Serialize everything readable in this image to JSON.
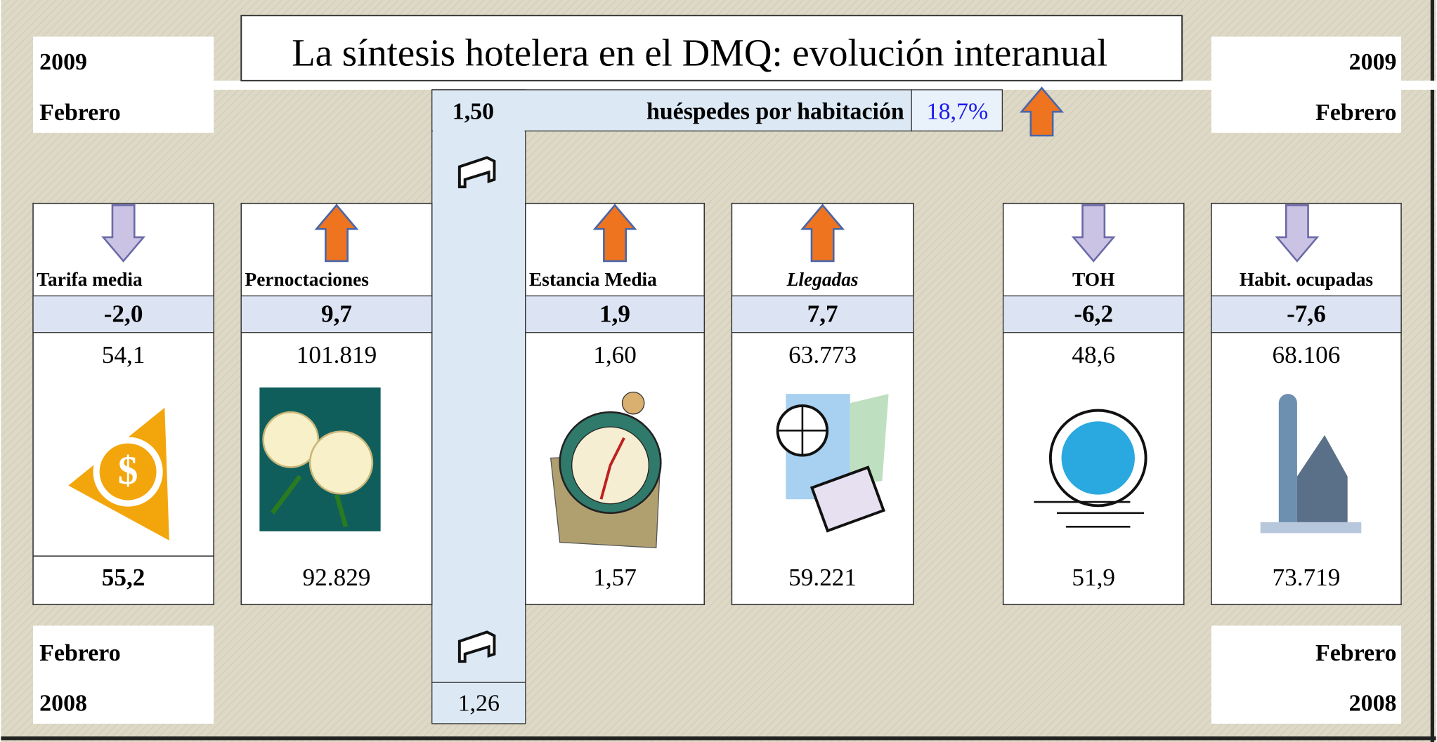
{
  "title": "La síntesis  hotelera en el DMQ: evolución interanual",
  "corners": {
    "top_left": {
      "year": "2009",
      "month": "Febrero"
    },
    "top_right": {
      "year": "2009",
      "month": "Febrero"
    },
    "bottom_left": {
      "month": "Febrero",
      "year": "2008"
    },
    "bottom_right": {
      "month": "Febrero",
      "year": "2008"
    }
  },
  "guests": {
    "current": "1,50",
    "label": "huéspedes  por habitación",
    "change": "18,7%",
    "previous": "1,26"
  },
  "indicators": [
    {
      "name": "Tarifa media",
      "change": "-2,0",
      "current": "54,1",
      "previous": "55,2"
    },
    {
      "name": "Pernoctaciones",
      "change": "9,7",
      "current": "101.819",
      "previous": "92.829"
    },
    {
      "name": "Estancia Media",
      "change": "1,9",
      "current": "1,60",
      "previous": "1,57"
    },
    {
      "name": "Llegadas",
      "change": "7,7",
      "current": "63.773",
      "previous": "59.221"
    },
    {
      "name": "TOH",
      "change": "-6,2",
      "current": "48,6",
      "previous": "51,9"
    },
    {
      "name": "Habit. ocupadas",
      "change": "-7,6",
      "current": "68.106",
      "previous": "73.719"
    }
  ]
}
